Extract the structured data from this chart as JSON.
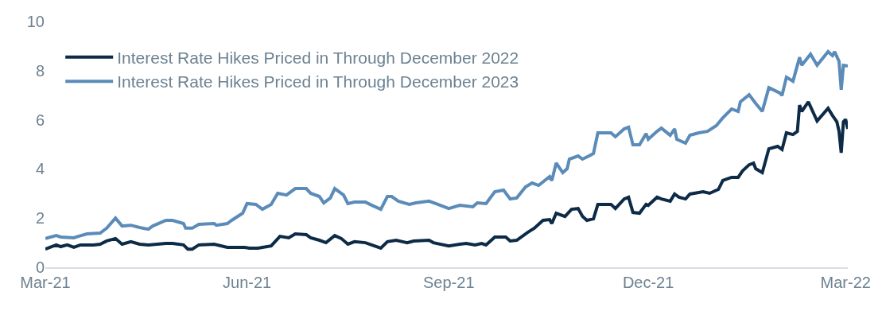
{
  "chart_data": {
    "type": "line",
    "legend": "top left",
    "line_style": "solid",
    "xlim": [
      "2021-03-01",
      "2022-03-02"
    ],
    "xticks": [
      {
        "value": "2021-03-01",
        "label": "Mar-21"
      },
      {
        "value": "2021-06-01",
        "label": "Jun-21"
      },
      {
        "value": "2021-09-01",
        "label": "Sep-21"
      },
      {
        "value": "2021-12-01",
        "label": "Dec-21"
      },
      {
        "value": "2022-03-01",
        "label": "Mar-22"
      }
    ],
    "ylim": [
      0,
      10
    ],
    "yticks": [
      0,
      2,
      4,
      6,
      8,
      10
    ],
    "series": [
      {
        "name": "Interest Rate Hikes Priced in Through December 2022",
        "color": "#0d2b47",
        "x": [
          "2021-03-01",
          "2021-03-06",
          "2021-03-08",
          "2021-03-11",
          "2021-03-14",
          "2021-03-17",
          "2021-03-23",
          "2021-03-26",
          "2021-03-29",
          "2021-04-02",
          "2021-04-05",
          "2021-04-09",
          "2021-04-13",
          "2021-04-17",
          "2021-04-25",
          "2021-04-28",
          "2021-05-03",
          "2021-05-05",
          "2021-05-07",
          "2021-05-10",
          "2021-05-17",
          "2021-05-23",
          "2021-05-31",
          "2021-06-02",
          "2021-06-06",
          "2021-06-08",
          "2021-06-12",
          "2021-06-16",
          "2021-06-20",
          "2021-06-23",
          "2021-06-28",
          "2021-06-30",
          "2021-07-04",
          "2021-07-07",
          "2021-07-11",
          "2021-07-14",
          "2021-07-17",
          "2021-07-20",
          "2021-07-25",
          "2021-08-01",
          "2021-08-04",
          "2021-08-08",
          "2021-08-13",
          "2021-08-16",
          "2021-08-23",
          "2021-08-25",
          "2021-09-01",
          "2021-09-06",
          "2021-09-09",
          "2021-09-13",
          "2021-09-16",
          "2021-09-18",
          "2021-09-22",
          "2021-09-27",
          "2021-09-29",
          "2021-10-02",
          "2021-10-07",
          "2021-10-10",
          "2021-10-14",
          "2021-10-17",
          "2021-10-18",
          "2021-10-20",
          "2021-10-24",
          "2021-10-27",
          "2021-10-30",
          "2021-11-01",
          "2021-11-03",
          "2021-11-06",
          "2021-11-08",
          "2021-11-14",
          "2021-11-16",
          "2021-11-20",
          "2021-11-22",
          "2021-11-24",
          "2021-11-27",
          "2021-11-30",
          "2021-12-01",
          "2021-12-05",
          "2021-12-07",
          "2021-12-11",
          "2021-12-13",
          "2021-12-15",
          "2021-12-18",
          "2021-12-20",
          "2021-12-26",
          "2021-12-29",
          "2022-01-02",
          "2022-01-04",
          "2022-01-08",
          "2022-01-11",
          "2022-01-13",
          "2022-01-16",
          "2022-01-18",
          "2022-01-19",
          "2022-01-22",
          "2022-01-25",
          "2022-01-29",
          "2022-01-31",
          "2022-02-02",
          "2022-02-05",
          "2022-02-07",
          "2022-02-08",
          "2022-02-09",
          "2022-02-12",
          "2022-02-16",
          "2022-02-21",
          "2022-02-23",
          "2022-02-25",
          "2022-02-26",
          "2022-02-27",
          "2022-02-28",
          "2022-03-01",
          "2022-03-02"
        ],
        "values": [
          0.74,
          0.91,
          0.84,
          0.91,
          0.81,
          0.91,
          0.91,
          0.94,
          1.07,
          1.17,
          0.94,
          1.04,
          0.94,
          0.91,
          0.97,
          0.97,
          0.91,
          0.74,
          0.74,
          0.91,
          0.94,
          0.81,
          0.81,
          0.78,
          0.78,
          0.81,
          0.87,
          1.26,
          1.2,
          1.36,
          1.33,
          1.2,
          1.1,
          1.0,
          1.29,
          1.17,
          0.94,
          1.04,
          1.0,
          0.78,
          1.04,
          1.1,
          1.0,
          1.07,
          1.1,
          1.0,
          0.87,
          0.94,
          0.97,
          0.91,
          0.97,
          0.91,
          1.23,
          1.23,
          1.07,
          1.1,
          1.42,
          1.59,
          1.91,
          1.94,
          1.78,
          2.2,
          2.07,
          2.36,
          2.39,
          2.07,
          1.91,
          1.97,
          2.56,
          2.56,
          2.39,
          2.78,
          2.85,
          2.23,
          2.2,
          2.56,
          2.52,
          2.85,
          2.78,
          2.69,
          2.98,
          2.85,
          2.78,
          2.98,
          3.07,
          3.01,
          3.17,
          3.53,
          3.66,
          3.66,
          3.92,
          4.17,
          4.24,
          4.01,
          3.85,
          4.82,
          4.92,
          4.79,
          5.47,
          5.4,
          5.53,
          6.6,
          6.34,
          6.73,
          5.95,
          6.47,
          6.18,
          5.92,
          5.53,
          4.66,
          5.92,
          6.02,
          5.63
        ]
      },
      {
        "name": "Interest Rate Hikes Priced in Through December 2023",
        "color": "#5b8bb8",
        "x": [
          "2021-03-01",
          "2021-03-06",
          "2021-03-08",
          "2021-03-14",
          "2021-03-16",
          "2021-03-20",
          "2021-03-26",
          "2021-03-29",
          "2021-04-02",
          "2021-04-05",
          "2021-04-09",
          "2021-04-13",
          "2021-04-17",
          "2021-04-19",
          "2021-04-25",
          "2021-04-28",
          "2021-05-03",
          "2021-05-04",
          "2021-05-07",
          "2021-05-10",
          "2021-05-17",
          "2021-05-18",
          "2021-05-23",
          "2021-05-25",
          "2021-05-30",
          "2021-06-01",
          "2021-06-05",
          "2021-06-08",
          "2021-06-12",
          "2021-06-15",
          "2021-06-19",
          "2021-06-23",
          "2021-06-28",
          "2021-06-30",
          "2021-07-04",
          "2021-07-06",
          "2021-07-09",
          "2021-07-11",
          "2021-07-15",
          "2021-07-17",
          "2021-07-20",
          "2021-07-25",
          "2021-07-28",
          "2021-08-01",
          "2021-08-04",
          "2021-08-06",
          "2021-08-09",
          "2021-08-14",
          "2021-08-17",
          "2021-08-23",
          "2021-08-27",
          "2021-09-01",
          "2021-09-06",
          "2021-09-12",
          "2021-09-14",
          "2021-09-18",
          "2021-09-22",
          "2021-09-26",
          "2021-09-29",
          "2021-10-02",
          "2021-10-06",
          "2021-10-09",
          "2021-10-12",
          "2021-10-17",
          "2021-10-18",
          "2021-10-20",
          "2021-10-23",
          "2021-10-25",
          "2021-10-26",
          "2021-10-30",
          "2021-11-01",
          "2021-11-04",
          "2021-11-06",
          "2021-11-08",
          "2021-11-14",
          "2021-11-16",
          "2021-11-20",
          "2021-11-22",
          "2021-11-24",
          "2021-11-27",
          "2021-11-30",
          "2021-12-01",
          "2021-12-05",
          "2021-12-07",
          "2021-12-11",
          "2021-12-13",
          "2021-12-14",
          "2021-12-18",
          "2021-12-20",
          "2021-12-24",
          "2021-12-28",
          "2022-01-01",
          "2022-01-04",
          "2022-01-08",
          "2022-01-11",
          "2022-01-12",
          "2022-01-16",
          "2022-01-19",
          "2022-01-22",
          "2022-01-25",
          "2022-01-30",
          "2022-01-31",
          "2022-02-02",
          "2022-02-05",
          "2022-02-08",
          "2022-02-09",
          "2022-02-13",
          "2022-02-16",
          "2022-02-21",
          "2022-02-23",
          "2022-02-24",
          "2022-02-26",
          "2022-02-27",
          "2022-02-28",
          "2022-03-02"
        ],
        "values": [
          1.17,
          1.29,
          1.23,
          1.2,
          1.26,
          1.36,
          1.39,
          1.59,
          2.0,
          1.68,
          1.71,
          1.62,
          1.55,
          1.68,
          1.91,
          1.91,
          1.78,
          1.59,
          1.59,
          1.75,
          1.78,
          1.71,
          1.78,
          1.91,
          2.2,
          2.59,
          2.56,
          2.36,
          2.56,
          3.01,
          2.94,
          3.2,
          3.2,
          3.01,
          2.88,
          2.62,
          2.82,
          3.2,
          2.94,
          2.59,
          2.65,
          2.65,
          2.52,
          2.36,
          2.88,
          2.88,
          2.69,
          2.56,
          2.62,
          2.69,
          2.56,
          2.39,
          2.52,
          2.46,
          2.62,
          2.59,
          3.07,
          3.14,
          2.78,
          2.82,
          3.27,
          3.43,
          3.33,
          3.69,
          3.53,
          4.24,
          3.85,
          4.01,
          4.4,
          4.53,
          4.4,
          4.53,
          4.63,
          5.47,
          5.47,
          5.31,
          5.63,
          5.7,
          4.98,
          4.98,
          5.44,
          5.21,
          5.53,
          5.66,
          5.37,
          5.63,
          5.21,
          5.05,
          5.37,
          5.47,
          5.53,
          5.76,
          6.08,
          6.44,
          6.34,
          6.73,
          7.02,
          6.67,
          6.34,
          7.31,
          7.09,
          6.99,
          7.73,
          7.57,
          8.54,
          8.22,
          8.67,
          8.22,
          8.77,
          8.61,
          8.77,
          8.38,
          7.22,
          8.22,
          8.19
        ]
      }
    ]
  }
}
